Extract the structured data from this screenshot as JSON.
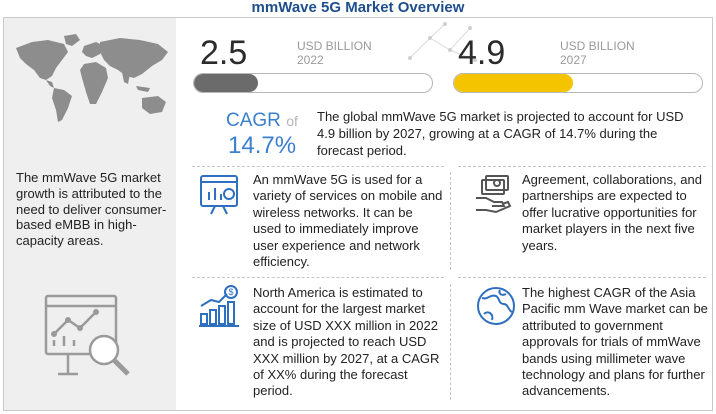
{
  "title": "mmWave 5G Market Overview",
  "left_panel": {
    "text": "The mmWave 5G market growth is attributed to the need to deliver consumer-based eMBB in high-capacity areas.",
    "map_icon": "world-map-icon",
    "analytics_icon": "analytics-magnifier-icon"
  },
  "metrics": [
    {
      "value": "2.5",
      "unit": "USD BILLION",
      "year": "2022",
      "bar_level": 0.27,
      "color": "#6b6b6b"
    },
    {
      "value": "4.9",
      "unit": "USD BILLION",
      "year": "2027",
      "bar_level": 0.48,
      "color": "#f5c400"
    }
  ],
  "cagr": {
    "label": "CAGR",
    "of": "of",
    "value": "14.7%"
  },
  "summary": "The global mmWave 5G market is projected to account for USD 4.9 billion  by 2027, growing at a CAGR of 14.7% during the forecast period.",
  "boxes": [
    {
      "icon": "network-services-icon",
      "text": "An mmWave 5G is used for a variety of services on mobile and wireless networks. It can be used to immediately improve user experience and network efficiency."
    },
    {
      "icon": "money-handshake-icon",
      "text": "Agreement, collaborations, and partnerships are expected to offer lucrative opportunities for market players in the next five years."
    },
    {
      "icon": "growth-chart-icon",
      "text": "North America is estimated to account for the largest market size of USD XXX million  in  2022 and is projected to reach USD XXX million by 2027, at a CAGR of XX% during the forecast period."
    },
    {
      "icon": "globe-icon",
      "text": "The highest CAGR of the Asia Pacific mm Wave market can be attributed to government approvals for trials of mmWave bands using millimeter wave technology and plans for further advancements."
    }
  ],
  "colors": {
    "title": "#1f4e8c",
    "accent": "#3b7fd0",
    "bar_gray": "#6b6b6b",
    "bar_yellow": "#f5c400",
    "panel": "#efefef"
  }
}
